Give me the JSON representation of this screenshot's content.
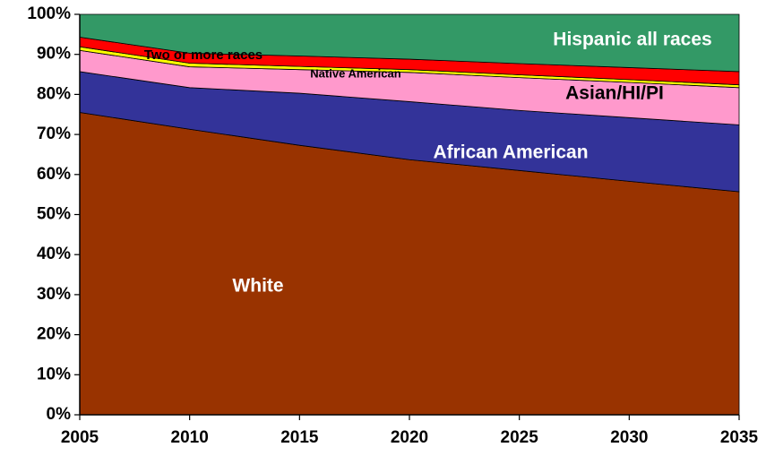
{
  "chart_data": {
    "type": "area",
    "stacked": "percent",
    "title": "",
    "xlabel": "",
    "ylabel": "",
    "x": [
      2005,
      2010,
      2015,
      2020,
      2025,
      2030,
      2035
    ],
    "xticks": [
      "2005",
      "2010",
      "2015",
      "2020",
      "2025",
      "2030",
      "2035"
    ],
    "yticks": [
      "0%",
      "10%",
      "20%",
      "30%",
      "40%",
      "50%",
      "60%",
      "70%",
      "80%",
      "90%",
      "100%"
    ],
    "ylim": [
      0,
      100
    ],
    "grid": false,
    "legend": "none (labels placed on areas)",
    "series": [
      {
        "name": "White",
        "color": "#993300",
        "label_color": "#ffffff",
        "values": [
          75.5,
          71.3,
          67.3,
          63.7,
          61.0,
          58.3,
          55.7
        ]
      },
      {
        "name": "African American",
        "color": "#333399",
        "label_color": "#ffffff",
        "values": [
          10.2,
          10.4,
          13.0,
          14.5,
          15.0,
          15.9,
          16.7
        ]
      },
      {
        "name": "Asian/HI/PI",
        "color": "#ff99cc",
        "label_color": "#000000",
        "values": [
          5.3,
          5.2,
          5.9,
          7.3,
          8.2,
          8.8,
          9.3
        ]
      },
      {
        "name": "Native American",
        "color": "#ffff00",
        "label_color": "#000000",
        "values": [
          0.9,
          0.9,
          0.8,
          0.7,
          0.7,
          0.7,
          0.7
        ]
      },
      {
        "name": "Two or more races",
        "color": "#ff0000",
        "label_color": "#000000",
        "values": [
          2.4,
          2.5,
          2.6,
          2.6,
          2.8,
          3.0,
          3.3
        ]
      },
      {
        "name": "Hispanic all races",
        "color": "#339966",
        "label_color": "#ffffff",
        "values": [
          5.7,
          9.7,
          10.4,
          11.2,
          12.3,
          13.3,
          14.3
        ]
      }
    ]
  }
}
